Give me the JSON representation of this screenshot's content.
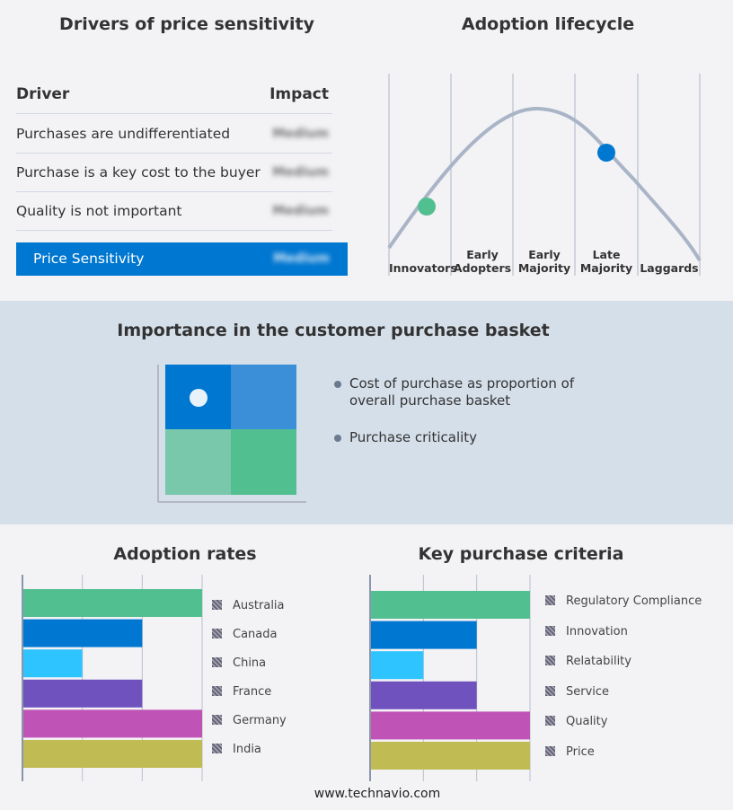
{
  "drivers": {
    "title": "Drivers of price sensitivity",
    "col_driver": "Driver",
    "col_impact": "Impact",
    "rows": [
      {
        "driver": "Purchases are undifferentiated",
        "impact": "Medium"
      },
      {
        "driver": "Purchase is a key cost to the buyer",
        "impact": "Medium"
      },
      {
        "driver": "Quality is not important",
        "impact": "Medium"
      }
    ],
    "summary": {
      "label": "Price Sensitivity",
      "impact": "Medium"
    },
    "accent": "#0077d0"
  },
  "lifecycle": {
    "title": "Adoption lifecycle",
    "stages": [
      "Innovators",
      "Early Adopters",
      "Early Majority",
      "Late Majority",
      "Laggards"
    ],
    "markers": [
      {
        "stage": "Innovators",
        "color": "#52bf90"
      },
      {
        "stage": "Late Majority",
        "color": "#0077d0"
      }
    ]
  },
  "basket": {
    "title": "Importance in the customer purchase basket",
    "legend": [
      "Cost of purchase as proportion of overall purchase basket",
      "Purchase criticality"
    ],
    "quadrant_colors": [
      "#0077d0",
      "#3a8fd8",
      "#7ac8ab",
      "#52bf90"
    ],
    "marker_quadrant": "top-left"
  },
  "chart_data": [
    {
      "type": "bar",
      "orientation": "horizontal",
      "title": "Adoption rates",
      "categories": [
        "Australia",
        "Canada",
        "China",
        "France",
        "Germany",
        "India"
      ],
      "values": [
        3,
        2,
        1,
        2,
        3,
        3
      ],
      "xlim": [
        0,
        3
      ],
      "grid": true,
      "legend": "right",
      "colors": [
        "#52bf90",
        "#0077d0",
        "#2ec4ff",
        "#7052be",
        "#c054b6",
        "#c0bb52"
      ]
    },
    {
      "type": "bar",
      "orientation": "horizontal",
      "title": "Key purchase criteria",
      "categories": [
        "Regulatory Compliance",
        "Innovation",
        "Relatability",
        "Service",
        "Quality",
        "Price"
      ],
      "values": [
        3,
        2,
        1,
        2,
        3,
        3
      ],
      "xlim": [
        0,
        3
      ],
      "grid": true,
      "legend": "right",
      "colors": [
        "#52bf90",
        "#0077d0",
        "#2ec4ff",
        "#7052be",
        "#c054b6",
        "#c0bb52"
      ]
    }
  ],
  "footer": "www.technavio.com"
}
